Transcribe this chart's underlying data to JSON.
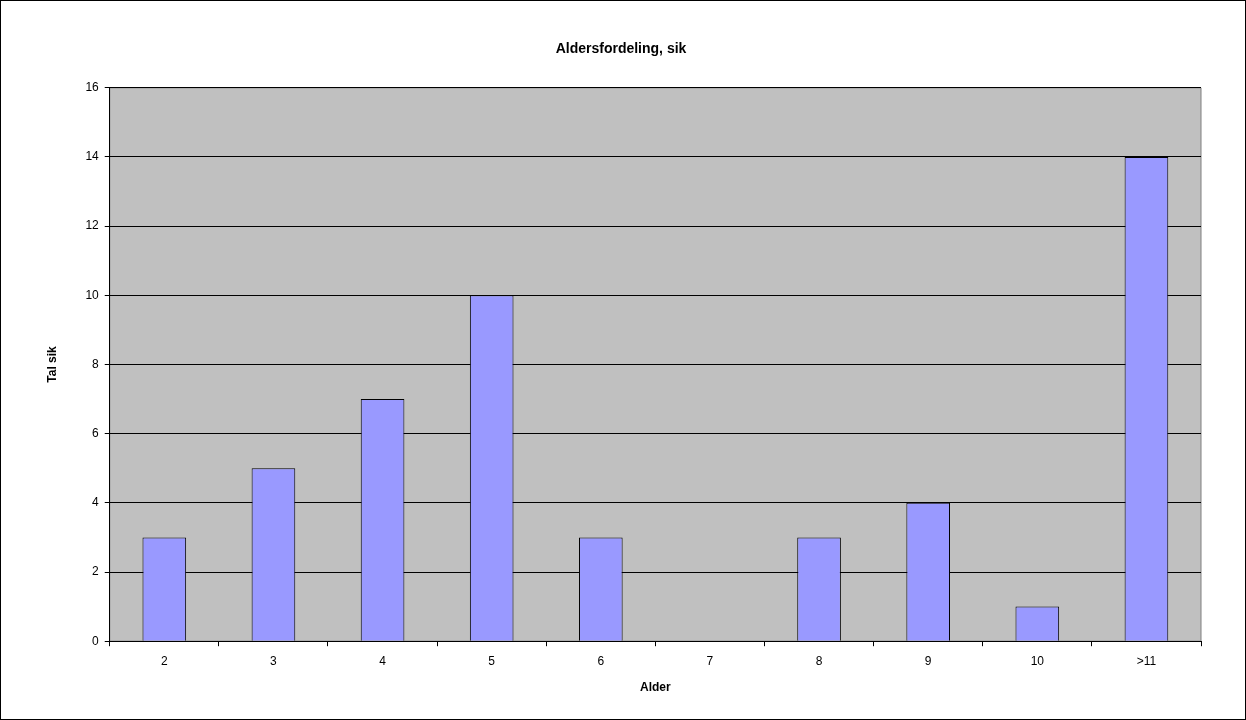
{
  "chart_data": {
    "type": "bar",
    "title": "Aldersfordeling, sik",
    "xlabel": "Alder",
    "ylabel": "Tal sik",
    "categories": [
      "2",
      "3",
      "4",
      "5",
      "6",
      "7",
      "8",
      "9",
      "10",
      ">11"
    ],
    "values": [
      3,
      5,
      7,
      10,
      3,
      0,
      3,
      4,
      1,
      14
    ],
    "color": "#9999ff",
    "ylim": [
      0,
      16
    ],
    "yticks": [
      0,
      2,
      4,
      6,
      8,
      10,
      12,
      14,
      16
    ],
    "grid": "y",
    "legend": false
  }
}
